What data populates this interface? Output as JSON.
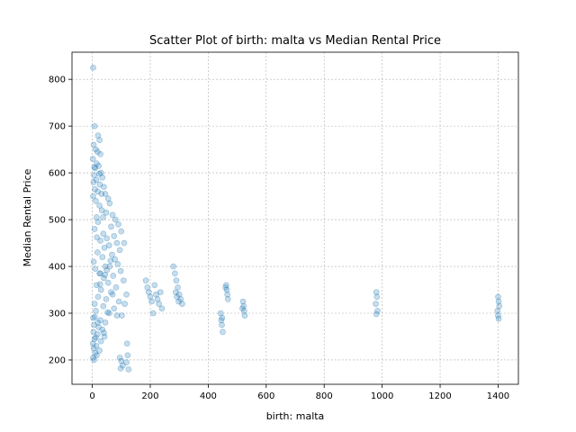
{
  "chart_data": {
    "type": "scatter",
    "title": "Scatter Plot of birth: malta vs Median Rental Price",
    "xlabel": "birth: malta",
    "ylabel": "Median Rental Price",
    "xlim": [
      -70,
      1470
    ],
    "ylim": [
      148,
      858
    ],
    "xticks": [
      0,
      200,
      400,
      600,
      800,
      1000,
      1200,
      1400
    ],
    "yticks": [
      200,
      300,
      400,
      500,
      600,
      700,
      800
    ],
    "grid": true,
    "point_color": "#1f77b4",
    "point_alpha": 0.25,
    "series": [
      {
        "points": [
          [
            3,
            825
          ],
          [
            8,
            700
          ],
          [
            20,
            680
          ],
          [
            25,
            670
          ],
          [
            5,
            660
          ],
          [
            12,
            650
          ],
          [
            18,
            645
          ],
          [
            28,
            640
          ],
          [
            2,
            630
          ],
          [
            15,
            620
          ],
          [
            22,
            615
          ],
          [
            10,
            610
          ],
          [
            30,
            600
          ],
          [
            6,
            595
          ],
          [
            35,
            590
          ],
          [
            14,
            585
          ],
          [
            4,
            580
          ],
          [
            26,
            575
          ],
          [
            40,
            570
          ],
          [
            9,
            565
          ],
          [
            19,
            560
          ],
          [
            45,
            555
          ],
          [
            3,
            550
          ],
          [
            55,
            545
          ],
          [
            12,
            540
          ],
          [
            60,
            535
          ],
          [
            25,
            530
          ],
          [
            33,
            520
          ],
          [
            48,
            515
          ],
          [
            70,
            510
          ],
          [
            15,
            505
          ],
          [
            80,
            500
          ],
          [
            20,
            495
          ],
          [
            90,
            490
          ],
          [
            65,
            485
          ],
          [
            8,
            480
          ],
          [
            100,
            475
          ],
          [
            38,
            470
          ],
          [
            75,
            465
          ],
          [
            50,
            460
          ],
          [
            28,
            455
          ],
          [
            85,
            450
          ],
          [
            110,
            450
          ],
          [
            58,
            445
          ],
          [
            42,
            440
          ],
          [
            95,
            435
          ],
          [
            18,
            430
          ],
          [
            68,
            425
          ],
          [
            35,
            420
          ],
          [
            78,
            415
          ],
          [
            5,
            410
          ],
          [
            88,
            405
          ],
          [
            45,
            400
          ],
          [
            60,
            400
          ],
          [
            10,
            395
          ],
          [
            98,
            390
          ],
          [
            25,
            385
          ],
          [
            72,
            380
          ],
          [
            40,
            375
          ],
          [
            108,
            370
          ],
          [
            55,
            365
          ],
          [
            15,
            360
          ],
          [
            82,
            355
          ],
          [
            30,
            350
          ],
          [
            65,
            345
          ],
          [
            118,
            340
          ],
          [
            20,
            335
          ],
          [
            48,
            330
          ],
          [
            92,
            325
          ],
          [
            8,
            320
          ],
          [
            38,
            315
          ],
          [
            75,
            310
          ],
          [
            12,
            305
          ],
          [
            58,
            300
          ],
          [
            102,
            295
          ],
          [
            3,
            290
          ],
          [
            28,
            285
          ],
          [
            45,
            280
          ],
          [
            6,
            275
          ],
          [
            22,
            270
          ],
          [
            35,
            265
          ],
          [
            4,
            260
          ],
          [
            18,
            255
          ],
          [
            42,
            250
          ],
          [
            8,
            245
          ],
          [
            30,
            240
          ],
          [
            2,
            235
          ],
          [
            14,
            230
          ],
          [
            5,
            225
          ],
          [
            10,
            215
          ],
          [
            3,
            205
          ],
          [
            6,
            200
          ],
          [
            15,
            210
          ],
          [
            25,
            220
          ],
          [
            40,
            258
          ],
          [
            12,
            248
          ],
          [
            95,
            205
          ],
          [
            100,
            198
          ],
          [
            105,
            188
          ],
          [
            120,
            235
          ],
          [
            122,
            210
          ],
          [
            118,
            195
          ],
          [
            125,
            180
          ],
          [
            98,
            182
          ],
          [
            185,
            370
          ],
          [
            190,
            355
          ],
          [
            195,
            345
          ],
          [
            200,
            335
          ],
          [
            205,
            325
          ],
          [
            210,
            300
          ],
          [
            215,
            360
          ],
          [
            220,
            340
          ],
          [
            225,
            330
          ],
          [
            230,
            320
          ],
          [
            235,
            345
          ],
          [
            240,
            310
          ],
          [
            280,
            400
          ],
          [
            285,
            385
          ],
          [
            290,
            370
          ],
          [
            295,
            355
          ],
          [
            300,
            340
          ],
          [
            305,
            330
          ],
          [
            310,
            320
          ],
          [
            288,
            345
          ],
          [
            292,
            335
          ],
          [
            298,
            325
          ],
          [
            443,
            300
          ],
          [
            445,
            285
          ],
          [
            447,
            275
          ],
          [
            450,
            260
          ],
          [
            448,
            290
          ],
          [
            462,
            360
          ],
          [
            464,
            350
          ],
          [
            466,
            340
          ],
          [
            468,
            330
          ],
          [
            460,
            355
          ],
          [
            520,
            325
          ],
          [
            522,
            315
          ],
          [
            524,
            305
          ],
          [
            526,
            295
          ],
          [
            518,
            310
          ],
          [
            980,
            345
          ],
          [
            982,
            335
          ],
          [
            978,
            320
          ],
          [
            984,
            305
          ],
          [
            980,
            298
          ],
          [
            1400,
            335
          ],
          [
            1402,
            325
          ],
          [
            1404,
            315
          ],
          [
            1398,
            305
          ],
          [
            1400,
            295
          ],
          [
            1402,
            288
          ],
          [
            28,
            385
          ],
          [
            50,
            392
          ],
          [
            70,
            340
          ],
          [
            85,
            295
          ],
          [
            112,
            320
          ],
          [
            32,
            555
          ],
          [
            7,
            612
          ],
          [
            24,
            598
          ],
          [
            37,
            505
          ],
          [
            16,
            462
          ],
          [
            63,
            412
          ],
          [
            44,
            382
          ],
          [
            27,
            362
          ],
          [
            53,
            302
          ],
          [
            9,
            292
          ],
          [
            19,
            280
          ]
        ]
      }
    ]
  }
}
